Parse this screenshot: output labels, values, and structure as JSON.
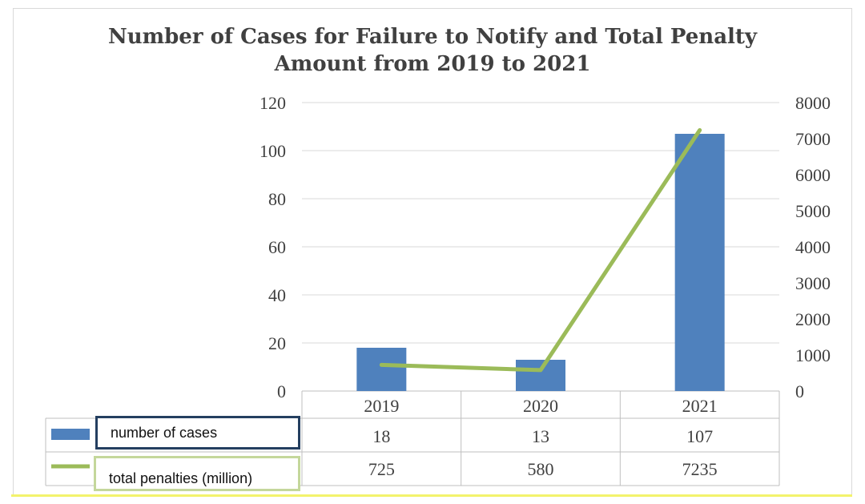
{
  "chart_data": {
    "type": "bar",
    "title_line1": "Number of Cases for Failure to Notify and Total Penalty",
    "title_line2": "Amount from 2019 to 2021",
    "categories": [
      "2019",
      "2020",
      "2021"
    ],
    "series": [
      {
        "name": "number of cases",
        "type": "bar",
        "axis": "left",
        "color": "#4f81bd",
        "values": [
          18,
          13,
          107
        ]
      },
      {
        "name": "total penalties (million)",
        "type": "line",
        "axis": "right",
        "color": "#9bbb59",
        "values": [
          725,
          580,
          7235
        ]
      }
    ],
    "y_left": {
      "range": [
        0,
        120
      ],
      "ticks": [
        0,
        20,
        40,
        60,
        80,
        100,
        120
      ]
    },
    "y_right": {
      "range": [
        0,
        8000
      ],
      "ticks": [
        0,
        1000,
        2000,
        3000,
        4000,
        5000,
        6000,
        7000,
        8000
      ]
    },
    "grid": true,
    "data_table": true
  }
}
